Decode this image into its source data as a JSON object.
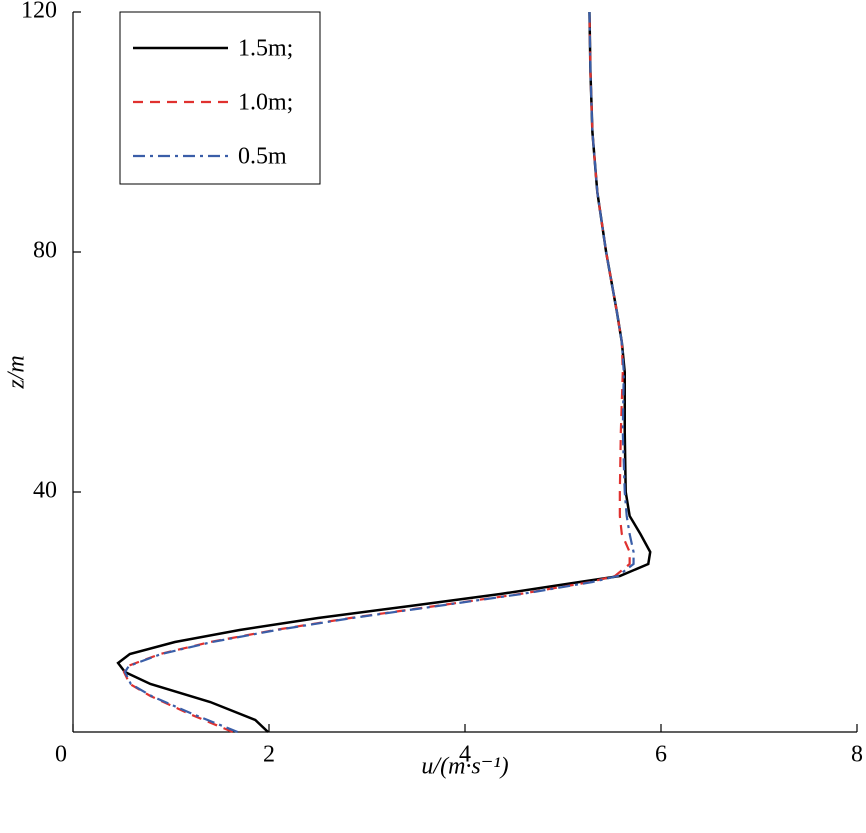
{
  "chart_data": {
    "type": "line",
    "xlabel": "u/(m·s⁻¹)",
    "ylabel": "z/m",
    "xlim": [
      0,
      8
    ],
    "xticks": [
      0,
      2,
      4,
      6,
      8
    ],
    "ylim": [
      0,
      120
    ],
    "yticks": [
      40,
      80,
      120
    ],
    "legend": "upper left",
    "series": [
      {
        "name": "1.5m;",
        "color": "#000000",
        "dash": "solid",
        "x": [
          1.99,
          1.86,
          1.4,
          0.79,
          0.53,
          0.46,
          0.58,
          1.04,
          1.7,
          2.5,
          3.44,
          4.36,
          5.17,
          5.58,
          5.87,
          5.89,
          5.79,
          5.68,
          5.64,
          5.63,
          5.63,
          5.6,
          5.55,
          5.44,
          5.35,
          5.3,
          5.28,
          5.27
        ],
        "values": [
          0,
          2,
          5,
          8,
          10,
          11.5,
          13,
          15,
          17,
          19,
          21,
          23,
          25,
          26,
          28,
          30,
          33,
          36,
          40,
          50,
          60,
          65,
          70,
          80,
          90,
          100,
          110,
          120
        ]
      },
      {
        "name": "1.0m;",
        "color": "#e0312f",
        "dash": "dashed",
        "x": [
          1.63,
          1.19,
          0.79,
          0.58,
          0.52,
          0.56,
          0.89,
          1.4,
          2.06,
          2.83,
          3.7,
          4.56,
          5.28,
          5.53,
          5.68,
          5.68,
          5.6,
          5.58,
          5.58,
          5.59,
          5.61,
          5.6,
          5.55,
          5.44,
          5.35,
          5.3,
          5.28,
          5.27
        ],
        "values": [
          0,
          3,
          6,
          8,
          10,
          11,
          13,
          15,
          17,
          19,
          21,
          23,
          25,
          26,
          28,
          30,
          33,
          36,
          40,
          50,
          60,
          65,
          70,
          80,
          90,
          100,
          110,
          120
        ]
      },
      {
        "name": "0.5m",
        "color": "#3a5ea8",
        "dash": "dashdot",
        "x": [
          1.68,
          1.22,
          0.8,
          0.59,
          0.53,
          0.57,
          0.9,
          1.42,
          2.08,
          2.85,
          3.72,
          4.58,
          5.3,
          5.56,
          5.72,
          5.72,
          5.68,
          5.65,
          5.63,
          5.61,
          5.62,
          5.6,
          5.55,
          5.44,
          5.35,
          5.3,
          5.28,
          5.27
        ],
        "values": [
          0,
          3,
          6,
          8,
          10,
          11,
          13,
          15,
          17,
          19,
          21,
          23,
          25,
          26,
          28,
          30,
          33,
          36,
          40,
          50,
          60,
          65,
          70,
          80,
          90,
          100,
          110,
          120
        ]
      }
    ]
  }
}
